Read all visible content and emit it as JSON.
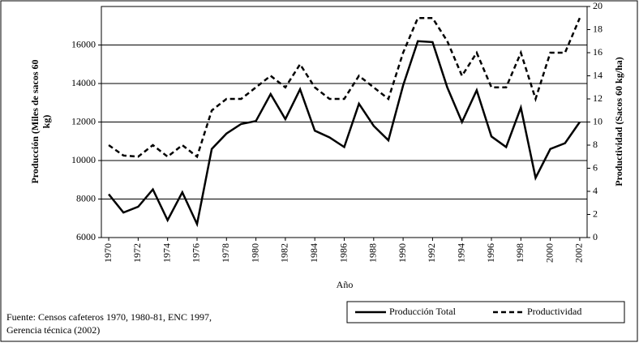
{
  "chart_data": {
    "type": "line",
    "xlabel": "Año",
    "ylabel": [
      "Producción (Miles de sacos 60",
      "kg)"
    ],
    "y2label": "Productividad (Sacos 60 kg/ha)",
    "source": [
      "Fuente: Censos cafeteros 1970, 1980-81, ENC 1997,",
      "Gerencia técnica (2002)"
    ],
    "x": [
      1970,
      1971,
      1972,
      1973,
      1974,
      1975,
      1976,
      1977,
      1978,
      1979,
      1980,
      1981,
      1982,
      1983,
      1984,
      1985,
      1986,
      1987,
      1988,
      1989,
      1990,
      1991,
      1992,
      1993,
      1994,
      1995,
      1996,
      1997,
      1998,
      1999,
      2000,
      2001,
      2002
    ],
    "series": [
      {
        "name": "Producción Total",
        "color": "#000000",
        "dashed": false,
        "values": [
          8250,
          7300,
          7600,
          8500,
          6900,
          8350,
          6700,
          10600,
          11400,
          11900,
          12050,
          13450,
          12150,
          13700,
          11550,
          11200,
          10700,
          12950,
          11800,
          11050,
          13900,
          16200,
          16150,
          13800,
          12000,
          13650,
          11250,
          10700,
          12750,
          9100,
          10600,
          10900,
          12000
        ]
      },
      {
        "name": "Productividad",
        "color": "#000000",
        "dashed": true,
        "axis": "y2",
        "values": [
          8,
          7.1,
          7,
          8,
          7,
          8,
          7,
          11,
          12,
          12,
          13,
          14,
          13,
          15,
          13,
          12,
          12,
          14,
          13,
          12,
          16,
          19,
          19,
          17,
          14,
          16,
          13,
          13,
          16,
          12,
          16,
          16,
          19
        ]
      }
    ],
    "xlim": [
      1969.5,
      2002.5
    ],
    "xticks": [
      1970,
      1972,
      1974,
      1976,
      1978,
      1980,
      1982,
      1984,
      1986,
      1988,
      1990,
      1992,
      1994,
      1996,
      1998,
      2000,
      2002
    ],
    "ylim": [
      6000,
      18000
    ],
    "yticks": [
      6000,
      8000,
      10000,
      12000,
      14000,
      16000
    ],
    "y2lim": [
      0,
      20
    ],
    "y2ticks": [
      0,
      2,
      4,
      6,
      8,
      10,
      12,
      14,
      16,
      18,
      20
    ],
    "grid": true,
    "legend": "bottom-right"
  }
}
